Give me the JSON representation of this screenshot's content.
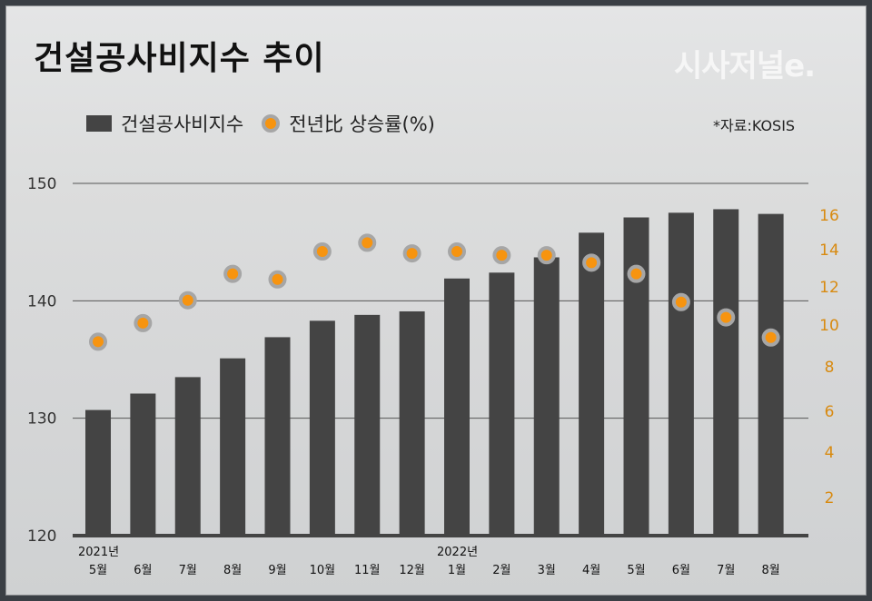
{
  "title": "건설공사비지수 추이",
  "watermark": "시사저널e.",
  "source": "*자료:KOSIS",
  "legend": {
    "bar": "건설공사비지수",
    "dot": "전년比 상승률(%)"
  },
  "colors": {
    "bar": "#444444",
    "dot": "#f7940f",
    "dot_ring": "#a6a6a6",
    "right_axis": "#d88a10"
  },
  "chart_data": {
    "type": "bar+scatter",
    "categories": [
      "5월",
      "6월",
      "7월",
      "8월",
      "9월",
      "10월",
      "11월",
      "12월",
      "1월",
      "2월",
      "3월",
      "4월",
      "5월",
      "6월",
      "7월",
      "8월"
    ],
    "year_labels": [
      {
        "index": 0,
        "label": "2021년"
      },
      {
        "index": 8,
        "label": "2022년"
      }
    ],
    "series": [
      {
        "name": "건설공사비지수",
        "type": "bar",
        "axis": "left",
        "values": [
          130.7,
          132.1,
          133.5,
          135.1,
          136.9,
          138.3,
          138.8,
          139.1,
          141.9,
          142.4,
          143.7,
          145.8,
          147.1,
          147.5,
          147.8,
          147.4
        ]
      },
      {
        "name": "전년比 상승률(%)",
        "type": "scatter",
        "axis": "right",
        "values": [
          9.2,
          10.1,
          11.3,
          12.7,
          12.4,
          13.9,
          14.4,
          13.8,
          13.9,
          13.7,
          13.7,
          13.3,
          12.7,
          11.2,
          10.4,
          9.4
        ]
      }
    ],
    "left_axis": {
      "ticks": [
        120,
        130,
        140,
        150
      ],
      "ylim": [
        120,
        150
      ]
    },
    "right_axis": {
      "ticks": [
        2,
        4,
        6,
        8,
        10,
        12,
        14,
        16
      ]
    },
    "grid": true,
    "legend_position": "top-left"
  }
}
